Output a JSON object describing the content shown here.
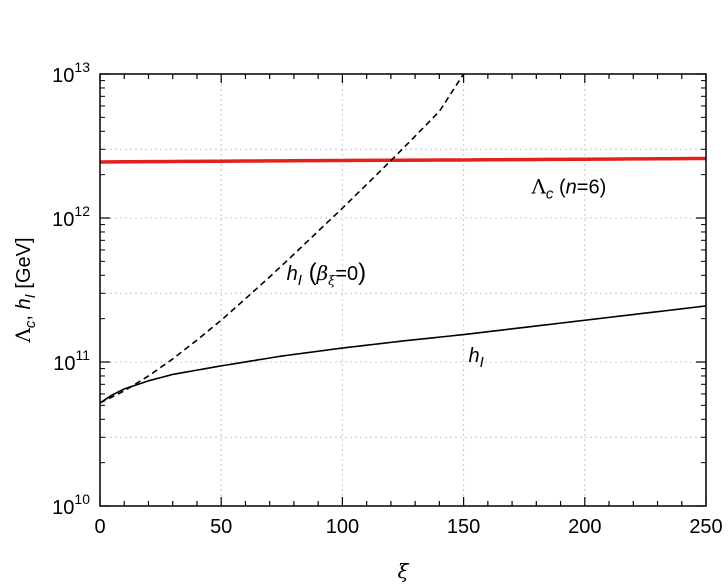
{
  "chart_data": {
    "type": "line",
    "title": "",
    "xlabel": "ξ",
    "ylabel": "Λc, hI [GeV]",
    "xlim": [
      0,
      250
    ],
    "ylim": [
      10000000000.0,
      10000000000000.0
    ],
    "yscale": "log",
    "grid": true,
    "x_ticks": [
      0,
      50,
      100,
      150,
      200,
      250
    ],
    "x_tick_labels": [
      "0",
      "50",
      "100",
      "150",
      "200",
      "250"
    ],
    "y_ticks": [
      10000000000.0,
      100000000000.0,
      1000000000000.0,
      10000000000000.0
    ],
    "y_tick_labels": [
      {
        "base": "10",
        "exp": "10"
      },
      {
        "base": "10",
        "exp": "11"
      },
      {
        "base": "10",
        "exp": "12"
      },
      {
        "base": "10",
        "exp": "13"
      }
    ],
    "series": [
      {
        "name": "Λc (n=6)",
        "color": "#e3201b",
        "style": "solid",
        "x": [
          0,
          50,
          100,
          150,
          200,
          250
        ],
        "y": [
          2450000000000.0,
          2480000000000.0,
          2510000000000.0,
          2530000000000.0,
          2560000000000.0,
          2590000000000.0
        ]
      },
      {
        "name": "hI (βξ=0)",
        "color": "#000000",
        "style": "dashed",
        "x": [
          0,
          10,
          20,
          30,
          40,
          50,
          60,
          70,
          80,
          90,
          100,
          110,
          120,
          130,
          140,
          150
        ],
        "y": [
          52000000000.0,
          63000000000.0,
          80000000000.0,
          105000000000.0,
          142000000000.0,
          195000000000.0,
          275000000000.0,
          390000000000.0,
          560000000000.0,
          810000000000.0,
          1170000000000.0,
          1710000000000.0,
          2500000000000.0,
          3700000000000.0,
          5500000000000.0,
          10000000000000.0
        ]
      },
      {
        "name": "hI",
        "color": "#000000",
        "style": "solid",
        "x": [
          0,
          5,
          10,
          20,
          30,
          50,
          75,
          100,
          125,
          150,
          200,
          250
        ],
        "y": [
          52000000000.0,
          59000000000.0,
          65000000000.0,
          74000000000.0,
          82000000000.0,
          94000000000.0,
          110000000000.0,
          125000000000.0,
          140000000000.0,
          155000000000.0,
          195000000000.0,
          245000000000.0
        ]
      }
    ],
    "annotations": [
      {
        "series": "Λc (n=6)",
        "at_x": 178,
        "at_y": 1480000000000.0
      },
      {
        "series": "hI (βξ=0)",
        "at_x": 77,
        "at_y": 370000000000.0
      },
      {
        "series": "hI",
        "at_x": 152,
        "at_y": 100000000000.0
      }
    ]
  }
}
